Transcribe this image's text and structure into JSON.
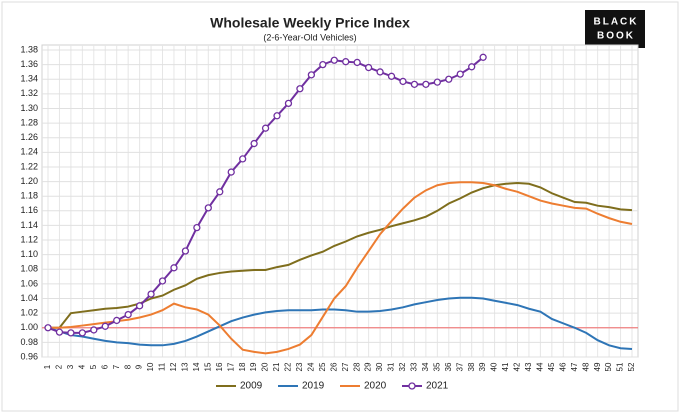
{
  "chart_data": {
    "type": "line",
    "title": "Wholesale Weekly Price Index",
    "subtitle": "(2-6-Year-Old Vehicles)",
    "logo": [
      "BLACK",
      "BOOK"
    ],
    "categories": [
      "1",
      "2",
      "3",
      "4",
      "5",
      "6",
      "7",
      "8",
      "9",
      "10",
      "11",
      "12",
      "13",
      "14",
      "15",
      "16",
      "17",
      "18",
      "19",
      "20",
      "21",
      "22",
      "23",
      "24",
      "25",
      "26",
      "27",
      "28",
      "29",
      "30",
      "31",
      "32",
      "33",
      "34",
      "35",
      "36",
      "37",
      "38",
      "39",
      "40",
      "41",
      "42",
      "43",
      "44",
      "45",
      "46",
      "47",
      "48",
      "49",
      "50",
      "51",
      "52"
    ],
    "ylim": [
      0.96,
      1.38
    ],
    "yticks": [
      0.96,
      0.98,
      {
        "value": 1.0,
        "label": "1.00"
      },
      1.02,
      1.04,
      1.06,
      1.08,
      {
        "value": 1.1,
        "label": "1.10"
      },
      1.12,
      1.14,
      1.16,
      1.18,
      {
        "value": 1.2,
        "label": "1.20"
      },
      1.22,
      1.24,
      1.26,
      1.28,
      {
        "value": 1.3,
        "label": "1.30"
      },
      1.32,
      1.34,
      1.36,
      1.38
    ],
    "grid": true,
    "reference_line": {
      "value": 1.0,
      "color": "#f08080"
    },
    "legend": "bottom",
    "series": [
      {
        "name": "2009",
        "color": "#7f6e1d",
        "marker": false,
        "values": [
          1.0,
          1.0,
          1.02,
          1.022,
          1.024,
          1.026,
          1.027,
          1.029,
          1.033,
          1.04,
          1.044,
          1.052,
          1.058,
          1.067,
          1.072,
          1.075,
          1.077,
          1.078,
          1.079,
          1.079,
          1.083,
          1.086,
          1.093,
          1.099,
          1.104,
          1.112,
          1.118,
          1.125,
          1.13,
          1.134,
          1.139,
          1.143,
          1.147,
          1.152,
          1.16,
          1.17,
          1.177,
          1.185,
          1.191,
          1.195,
          1.197,
          1.198,
          1.197,
          1.192,
          1.184,
          1.178,
          1.172,
          1.171,
          1.167,
          1.165,
          1.162,
          1.161
        ]
      },
      {
        "name": "2019",
        "color": "#2e75b6",
        "marker": false,
        "values": [
          1.0,
          0.995,
          0.99,
          0.988,
          0.985,
          0.982,
          0.98,
          0.979,
          0.977,
          0.976,
          0.976,
          0.978,
          0.982,
          0.988,
          0.995,
          1.002,
          1.009,
          1.014,
          1.018,
          1.021,
          1.023,
          1.024,
          1.024,
          1.024,
          1.025,
          1.025,
          1.024,
          1.022,
          1.022,
          1.023,
          1.025,
          1.028,
          1.032,
          1.035,
          1.038,
          1.04,
          1.041,
          1.041,
          1.04,
          1.037,
          1.034,
          1.031,
          1.026,
          1.022,
          1.012,
          1.006,
          1.0,
          0.993,
          0.983,
          0.976,
          0.972,
          0.971
        ]
      },
      {
        "name": "2020",
        "color": "#ed7d31",
        "marker": false,
        "values": [
          1.0,
          1.0,
          1.001,
          1.003,
          1.005,
          1.007,
          1.009,
          1.011,
          1.014,
          1.018,
          1.024,
          1.033,
          1.028,
          1.025,
          1.018,
          1.003,
          0.985,
          0.97,
          0.967,
          0.965,
          0.967,
          0.971,
          0.977,
          0.99,
          1.015,
          1.04,
          1.057,
          1.082,
          1.105,
          1.128,
          1.146,
          1.163,
          1.178,
          1.188,
          1.195,
          1.198,
          1.199,
          1.199,
          1.198,
          1.195,
          1.19,
          1.186,
          1.18,
          1.174,
          1.17,
          1.167,
          1.164,
          1.163,
          1.156,
          1.15,
          1.145,
          1.142
        ]
      },
      {
        "name": "2021",
        "color": "#7030a0",
        "marker": true,
        "values": [
          1.0,
          0.994,
          0.993,
          0.993,
          0.997,
          1.002,
          1.01,
          1.018,
          1.03,
          1.046,
          1.064,
          1.082,
          1.105,
          1.137,
          1.164,
          1.186,
          1.213,
          1.231,
          1.252,
          1.273,
          1.29,
          1.307,
          1.327,
          1.346,
          1.36,
          1.366,
          1.364,
          1.363,
          1.356,
          1.35,
          1.344,
          1.337,
          1.333,
          1.333,
          1.336,
          1.34,
          1.347,
          1.357,
          1.37,
          null,
          null,
          null,
          null,
          null,
          null,
          null,
          null,
          null,
          null,
          null,
          null,
          null
        ]
      }
    ]
  }
}
